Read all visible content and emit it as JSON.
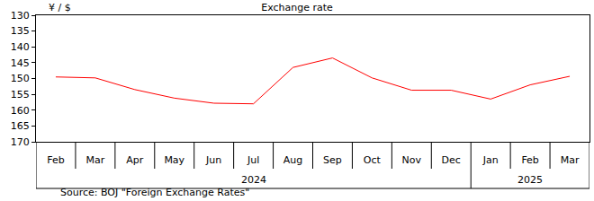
{
  "chart_data": {
    "type": "line",
    "title": "Exchange rate",
    "ylabel": "¥ / $",
    "categories": [
      "Feb",
      "Mar",
      "Apr",
      "May",
      "Jun",
      "Jul",
      "Aug",
      "Sep",
      "Oct",
      "Nov",
      "Dec",
      "Jan",
      "Feb",
      "Mar"
    ],
    "values": [
      149.5,
      149.8,
      153.5,
      156.2,
      157.8,
      158.0,
      146.5,
      143.5,
      149.8,
      153.7,
      153.7,
      156.5,
      152.0,
      149.3
    ],
    "color": "#ff0000",
    "ylim": [
      170,
      130
    ],
    "yticks": [
      130,
      135,
      140,
      145,
      150,
      155,
      160,
      165,
      170
    ],
    "grid": false,
    "year_groups": [
      {
        "label": "2024",
        "start": 0,
        "end": 10
      },
      {
        "label": "2025",
        "start": 11,
        "end": 13
      }
    ],
    "source": "Source: BOJ \"Foreign Exchange Rates\""
  }
}
